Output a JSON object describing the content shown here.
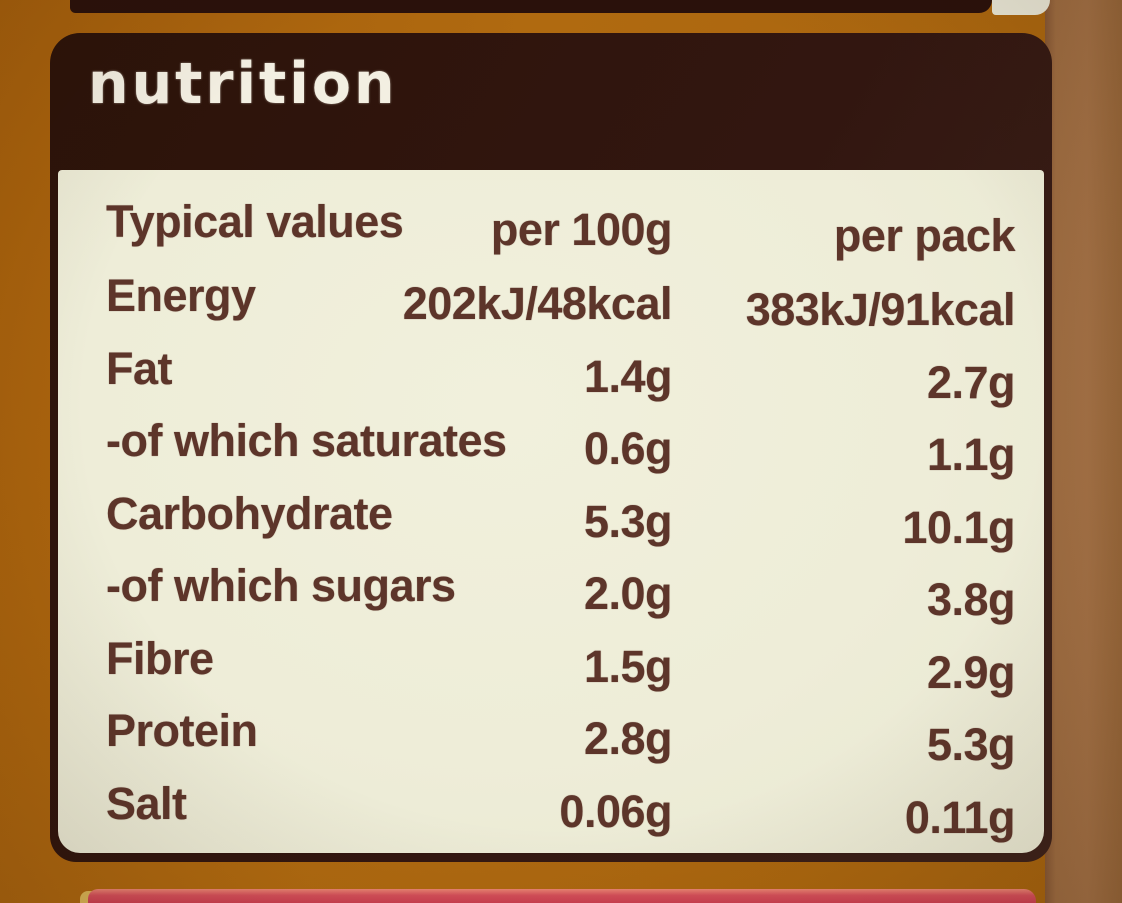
{
  "label": {
    "header": "nutrition",
    "table": {
      "columns": {
        "name": "Typical values",
        "per100": "per 100g",
        "pack": "per pack"
      },
      "rows": [
        {
          "name": "Energy",
          "per100": "202kJ/48kcal",
          "pack": "383kJ/91kcal"
        },
        {
          "name": "Fat",
          "per100": "1.4g",
          "pack": "2.7g"
        },
        {
          "name": "-of which saturates",
          "per100": "0.6g",
          "pack": "1.1g"
        },
        {
          "name": "Carbohydrate",
          "per100": "5.3g",
          "pack": "10.1g"
        },
        {
          "name": "-of which sugars",
          "per100": "2.0g",
          "pack": "3.8g"
        },
        {
          "name": "Fibre",
          "per100": "1.5g",
          "pack": "2.9g"
        },
        {
          "name": "Protein",
          "per100": "2.8g",
          "pack": "5.3g"
        },
        {
          "name": "Salt",
          "per100": "0.06g",
          "pack": "0.11g"
        }
      ]
    }
  },
  "colors": {
    "background_orange": "#aa660f",
    "jar_band_tan": "#9c6b40",
    "panel_dark_brown": "#321610",
    "panel_cream": "#eeedd8",
    "text_brown": "#5d352a",
    "header_text_cream": "#f3efe2",
    "bottom_strip_pink": "#d44f59",
    "bottom_sliver_yellow": "#d9b355"
  }
}
